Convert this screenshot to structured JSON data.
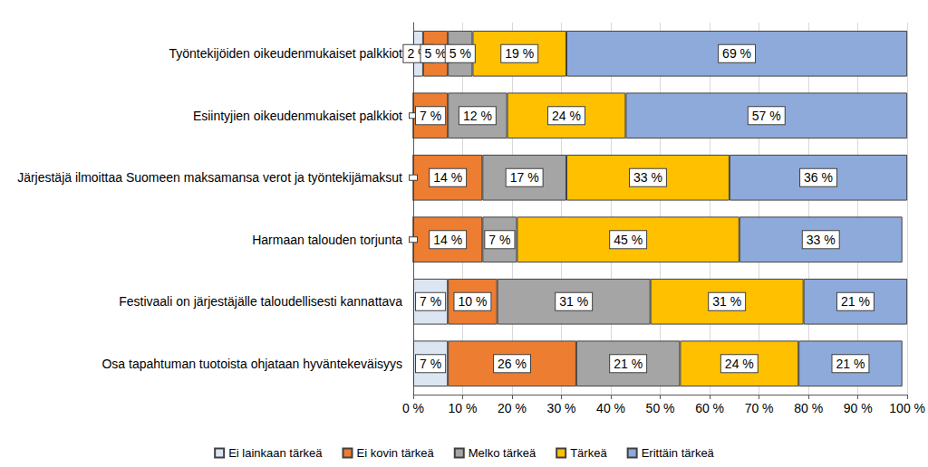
{
  "chart_data": {
    "type": "bar",
    "orientation": "horizontal",
    "stacked": true,
    "data_labels": true,
    "grid": true,
    "legend": "bottom",
    "categories": [
      "Työntekijöiden oikeudenmukaiset palkkiot",
      "Esiintyjien oikeudenmukaiset palkkiot",
      "Järjestäjä ilmoittaa Suomeen maksamansa verot ja työntekijämaksut",
      "Harmaan talouden torjunta",
      "Festivaali on järjestäjälle taloudellisesti kannattava",
      "Osa tapahtuman tuotoista ohjataan hyväntekeväisyys"
    ],
    "series": [
      {
        "name": "Ei lainkaan tärkeä",
        "color": "#dce6f2",
        "values": [
          2,
          0,
          0,
          0,
          7,
          7
        ],
        "value_labels": [
          "2 %",
          null,
          null,
          null,
          "7 %",
          "7 %"
        ]
      },
      {
        "name": "Ei kovin tärkeä",
        "color": "#ed7d31",
        "values": [
          5,
          7,
          14,
          14,
          10,
          26
        ],
        "value_labels": [
          "5 %",
          "7 %",
          "14 %",
          "14 %",
          "10 %",
          "26 %"
        ]
      },
      {
        "name": "Melko tärkeä",
        "color": "#a5a5a5",
        "values": [
          5,
          12,
          17,
          7,
          31,
          21
        ],
        "value_labels": [
          "5 %",
          "12 %",
          "17 %",
          "7 %",
          "31 %",
          "21 %"
        ]
      },
      {
        "name": "Tärkeä",
        "color": "#ffc000",
        "values": [
          19,
          24,
          33,
          45,
          31,
          24
        ],
        "value_labels": [
          "19 %",
          "24 %",
          "33 %",
          "45 %",
          "31 %",
          "24 %"
        ]
      },
      {
        "name": "Erittäin tärkeä",
        "color": "#8eaadb",
        "values": [
          69,
          57,
          36,
          33,
          21,
          21
        ],
        "value_labels": [
          "69 %",
          "57 %",
          "36 %",
          "33 %",
          "21 %",
          "21 %"
        ]
      }
    ],
    "xlim": [
      0,
      100
    ],
    "xticks": [
      {
        "value": 0,
        "label": "0 %"
      },
      {
        "value": 10,
        "label": "10 %"
      },
      {
        "value": 20,
        "label": "20 %"
      },
      {
        "value": 30,
        "label": "30 %"
      },
      {
        "value": 40,
        "label": "40 %"
      },
      {
        "value": 50,
        "label": "50 %"
      },
      {
        "value": 60,
        "label": "60 %"
      },
      {
        "value": 70,
        "label": "70 %"
      },
      {
        "value": 80,
        "label": "80 %"
      },
      {
        "value": 90,
        "label": "90 %"
      },
      {
        "value": 100,
        "label": "100 %"
      }
    ]
  }
}
